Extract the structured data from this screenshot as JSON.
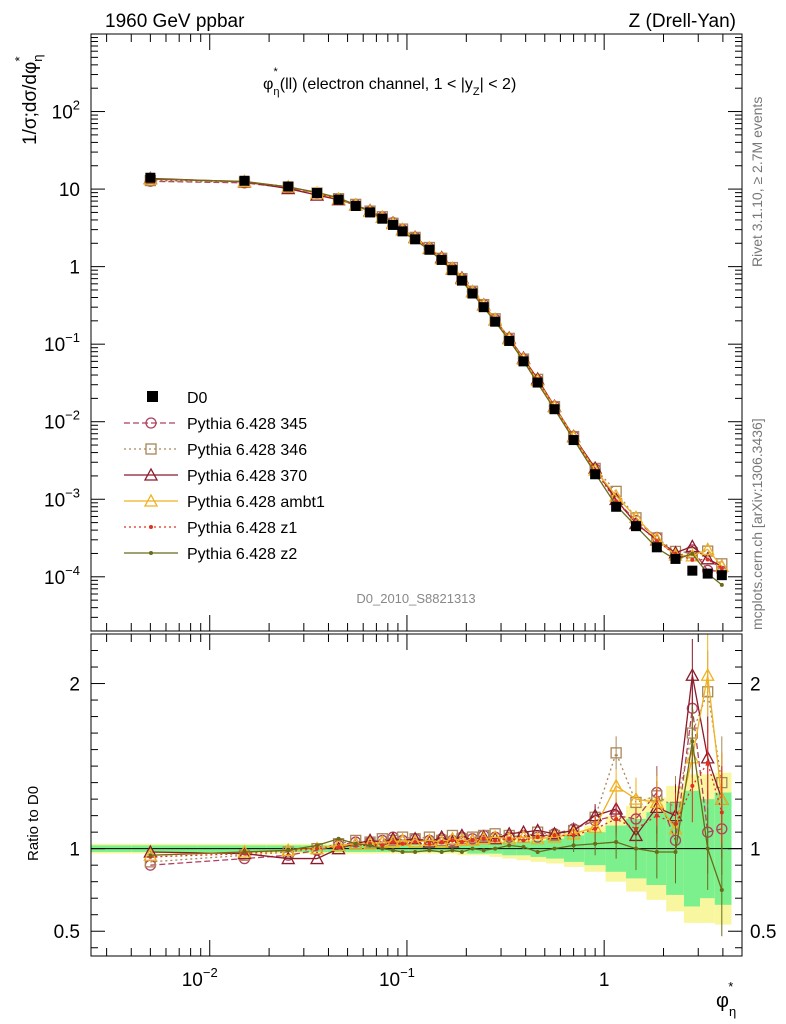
{
  "header": {
    "left": "1960 GeV ppbar",
    "right": "Z (Drell-Yan)"
  },
  "side": {
    "rivet": "Rivet 3.1.10, ≥ 2.7M events",
    "mcplots": "mcplots.cern.ch [arXiv:1306.3436]"
  },
  "chart_data": {
    "type": "line",
    "plot_title": {
      "main": "φ",
      "sup": "*",
      "sub": "η",
      "rest": "(ll) (electron channel, 1 < |y",
      "rest_sub": "Z",
      "rest_end": "| < 2)"
    },
    "analysis_label": "D0_2010_S8821313",
    "ylabel": {
      "main": "1/σ;dσ/dφ",
      "sub": "η",
      "sup": "*"
    },
    "ratio_ylabel": "Ratio to D0",
    "xlabel": {
      "main": "φ",
      "sub": "η",
      "sup": "*"
    },
    "x_scale": "log",
    "y_scale": "log",
    "xlim": [
      0.0025,
      5
    ],
    "ylim": [
      2e-05,
      1000
    ],
    "ratio_ylim": [
      0.35,
      2.3
    ],
    "x_ticks": [
      {
        "value": 0.01,
        "label": "10",
        "exp": "−2"
      },
      {
        "value": 0.1,
        "label": "10",
        "exp": "−1"
      },
      {
        "value": 1,
        "label": "1",
        "exp": ""
      }
    ],
    "y_ticks": [
      {
        "value": 100,
        "label": "10",
        "exp": "2"
      },
      {
        "value": 10,
        "label": "10",
        "exp": ""
      },
      {
        "value": 1,
        "label": "1",
        "exp": ""
      },
      {
        "value": 0.1,
        "label": "10",
        "exp": "−1"
      },
      {
        "value": 0.01,
        "label": "10",
        "exp": "−2"
      },
      {
        "value": 0.001,
        "label": "10",
        "exp": "−3"
      },
      {
        "value": 0.0001,
        "label": "10",
        "exp": "−4"
      }
    ],
    "ratio_ticks": [
      {
        "value": 2,
        "label": "2"
      },
      {
        "value": 1,
        "label": "1"
      },
      {
        "value": 0.5,
        "label": "0.5"
      }
    ],
    "x": [
      0.005,
      0.015,
      0.025,
      0.035,
      0.045,
      0.055,
      0.065,
      0.075,
      0.085,
      0.095,
      0.11,
      0.13,
      0.15,
      0.17,
      0.19,
      0.215,
      0.245,
      0.28,
      0.33,
      0.39,
      0.46,
      0.56,
      0.7,
      0.9,
      1.15,
      1.45,
      1.85,
      2.3,
      2.8,
      3.35,
      3.95
    ],
    "series": [
      {
        "name": "D0",
        "style": "data",
        "color": "#000000",
        "values": [
          14.0,
          12.8,
          10.8,
          8.9,
          7.3,
          6.05,
          5.0,
          4.15,
          3.45,
          2.85,
          2.25,
          1.65,
          1.22,
          0.9,
          0.66,
          0.45,
          0.3,
          0.195,
          0.11,
          0.06,
          0.032,
          0.0145,
          0.0058,
          0.0021,
          0.0008,
          0.00045,
          0.00024,
          0.00017,
          0.00012,
          0.00011,
          0.000105
        ],
        "ratio_band_inner": [
          0.02,
          0.02,
          0.02,
          0.02,
          0.02,
          0.02,
          0.02,
          0.02,
          0.02,
          0.02,
          0.02,
          0.02,
          0.02,
          0.02,
          0.02,
          0.03,
          0.03,
          0.03,
          0.04,
          0.04,
          0.05,
          0.06,
          0.08,
          0.1,
          0.14,
          0.18,
          0.22,
          0.28,
          0.35,
          0.3,
          0.34
        ],
        "ratio_band_outer": [
          0.03,
          0.03,
          0.03,
          0.03,
          0.03,
          0.03,
          0.03,
          0.03,
          0.03,
          0.03,
          0.03,
          0.03,
          0.03,
          0.03,
          0.04,
          0.04,
          0.04,
          0.05,
          0.06,
          0.07,
          0.08,
          0.09,
          0.11,
          0.14,
          0.2,
          0.26,
          0.31,
          0.38,
          0.45,
          0.45,
          0.46
        ]
      },
      {
        "name": "Pythia 6.428 345",
        "style": "circle-dashed",
        "color": "#b04060",
        "ratio": [
          0.9,
          0.94,
          0.96,
          0.99,
          1.02,
          1.04,
          1.04,
          1.05,
          1.07,
          1.05,
          1.06,
          1.05,
          1.06,
          1.05,
          1.07,
          1.06,
          1.08,
          1.07,
          1.07,
          1.08,
          1.07,
          1.09,
          1.12,
          1.17,
          1.2,
          1.18,
          1.34,
          1.05,
          1.85,
          1.1,
          1.12
        ]
      },
      {
        "name": "Pythia 6.428 346",
        "style": "square-dotted",
        "color": "#a8865a",
        "ratio": [
          0.92,
          0.96,
          0.98,
          1.0,
          1.03,
          1.05,
          1.04,
          1.06,
          1.05,
          1.07,
          1.06,
          1.07,
          1.05,
          1.08,
          1.06,
          1.07,
          1.08,
          1.09,
          1.08,
          1.07,
          1.1,
          1.08,
          1.11,
          1.19,
          1.58,
          1.28,
          1.32,
          1.25,
          1.7,
          1.95,
          1.4
        ]
      },
      {
        "name": "Pythia 6.428 370",
        "style": "triangle-solid",
        "color": "#8b1a2b",
        "ratio": [
          0.98,
          0.97,
          0.94,
          0.94,
          1.0,
          1.03,
          1.05,
          1.04,
          1.06,
          1.05,
          1.06,
          1.04,
          1.07,
          1.04,
          1.08,
          1.05,
          1.07,
          1.06,
          1.09,
          1.1,
          1.11,
          1.09,
          1.11,
          1.2,
          1.24,
          1.08,
          1.25,
          1.2,
          2.05,
          1.55,
          1.3
        ]
      },
      {
        "name": "Pythia 6.428 ambt1",
        "style": "triangle-solid",
        "color": "#f0b020",
        "ratio": [
          0.96,
          0.98,
          0.99,
          1.0,
          1.02,
          1.03,
          1.03,
          1.04,
          1.04,
          1.05,
          1.04,
          1.05,
          1.04,
          1.06,
          1.05,
          1.05,
          1.06,
          1.07,
          1.06,
          1.07,
          1.06,
          1.07,
          1.09,
          1.13,
          1.38,
          1.3,
          1.28,
          1.12,
          1.55,
          2.05,
          1.3
        ]
      },
      {
        "name": "Pythia 6.428 z1",
        "style": "dot-dotted",
        "color": "#e03020",
        "ratio": [
          0.95,
          0.97,
          0.99,
          1.0,
          1.01,
          1.02,
          1.03,
          1.02,
          1.04,
          1.03,
          1.04,
          1.03,
          1.04,
          1.05,
          1.04,
          1.05,
          1.06,
          1.05,
          1.06,
          1.05,
          1.07,
          1.08,
          1.08,
          1.12,
          1.18,
          1.12,
          1.2,
          1.15,
          1.38,
          1.52,
          1.22
        ]
      },
      {
        "name": "Pythia 6.428 z2",
        "style": "dot-solid",
        "color": "#6b6b1a",
        "ratio": [
          0.96,
          0.98,
          0.99,
          1.02,
          1.06,
          1.03,
          1.02,
          1.0,
          0.99,
          0.98,
          0.98,
          0.99,
          0.98,
          0.99,
          0.98,
          1.0,
          0.99,
          1.0,
          1.02,
          1.01,
          0.98,
          1.0,
          1.02,
          1.03,
          1.04,
          1.0,
          0.98,
          0.98,
          1.65,
          1.0,
          0.75
        ]
      }
    ],
    "colors": {
      "band_inner": "#7cf08c",
      "band_outer": "#f8f7a0"
    }
  }
}
